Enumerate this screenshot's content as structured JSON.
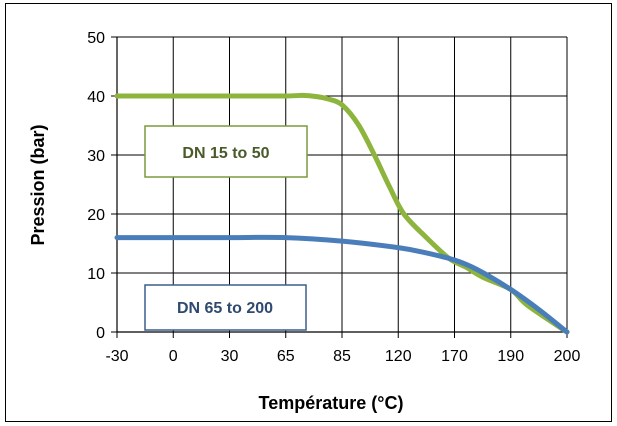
{
  "chart_data": {
    "type": "line",
    "title": "",
    "xlabel": "Température (°C)",
    "ylabel": "Pression (bar)",
    "x_tick_labels": [
      "-30",
      "0",
      "30",
      "65",
      "85",
      "120",
      "170",
      "190",
      "200"
    ],
    "y_ticks": [
      0,
      10,
      20,
      30,
      40,
      50
    ],
    "ylim": [
      0,
      50
    ],
    "grid": true,
    "series": [
      {
        "name": "DN 15 to 50",
        "color": "#8db43c",
        "x_tick_index": [
          0,
          1,
          2,
          3,
          3.3,
          3.55,
          3.75,
          4.0,
          4.3,
          4.6,
          4.85,
          5.1,
          5.5,
          5.9,
          6.2,
          6.5,
          7.0,
          7.3,
          8.0
        ],
        "y": [
          40,
          40,
          40,
          40,
          40.1,
          39.9,
          39.5,
          38.5,
          35,
          29.5,
          24.5,
          20,
          16,
          12.5,
          11,
          9.3,
          7.2,
          4.5,
          0
        ]
      },
      {
        "name": "DN 65 to 200",
        "color": "#4a7ebb",
        "x_tick_index": [
          0,
          1,
          2,
          3,
          4,
          5,
          5.5,
          6,
          6.4,
          7,
          7.5,
          8
        ],
        "y": [
          16,
          16,
          16,
          16,
          15.4,
          14.3,
          13.4,
          12.2,
          10.6,
          7.2,
          3.8,
          0
        ]
      }
    ]
  }
}
